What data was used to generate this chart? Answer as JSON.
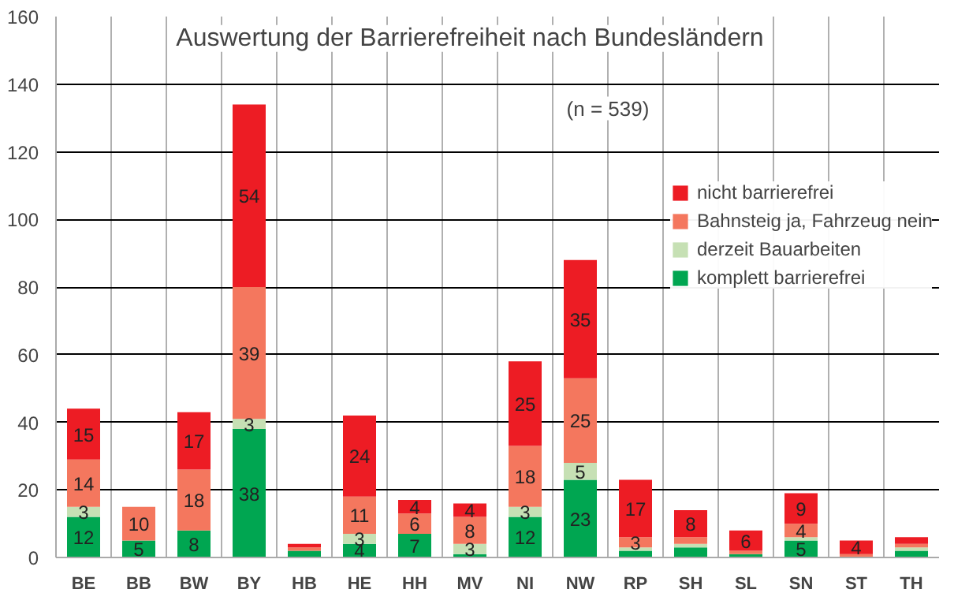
{
  "chart_data": {
    "type": "bar",
    "stacked": true,
    "title": "Auswertung der Barrierefreiheit nach Bundesländern",
    "annotations": [
      "(n = 539)"
    ],
    "categories": [
      "BE",
      "BB",
      "BW",
      "BY",
      "HB",
      "HE",
      "HH",
      "MV",
      "NI",
      "NW",
      "RP",
      "SH",
      "SL",
      "SN",
      "ST",
      "TH"
    ],
    "series": [
      {
        "name": "komplett barrierefrei",
        "color": "#00a651",
        "values": [
          12,
          5,
          8,
          38,
          2,
          4,
          7,
          1,
          12,
          23,
          2,
          3,
          1,
          5,
          0,
          2
        ],
        "value_labels": [
          "12",
          "5",
          "8",
          "38",
          null,
          "4",
          "7",
          null,
          "12",
          "23",
          null,
          null,
          null,
          "5",
          null,
          null
        ]
      },
      {
        "name": "derzeit Bauarbeiten",
        "color": "#c6e0b4",
        "values": [
          3,
          0,
          0,
          3,
          0,
          3,
          0,
          3,
          3,
          5,
          1,
          1,
          0,
          1,
          0,
          1
        ],
        "value_labels": [
          "3",
          null,
          null,
          "3",
          null,
          "3",
          null,
          "3",
          "3",
          "5",
          null,
          null,
          null,
          null,
          null,
          null
        ]
      },
      {
        "name": "Bahnsteig ja, Fahrzeug nein",
        "color": "#f4775e",
        "values": [
          14,
          10,
          18,
          39,
          1,
          11,
          6,
          8,
          18,
          25,
          3,
          2,
          1,
          4,
          1,
          1
        ],
        "value_labels": [
          "14",
          "10",
          "18",
          "39",
          null,
          "11",
          "6",
          "8",
          "18",
          "25",
          "3",
          null,
          null,
          "4",
          null,
          null
        ]
      },
      {
        "name": "nicht barrierefrei",
        "color": "#ed1c24",
        "values": [
          15,
          0,
          17,
          54,
          1,
          24,
          4,
          4,
          25,
          35,
          17,
          8,
          6,
          9,
          4,
          2
        ],
        "value_labels": [
          "15",
          null,
          "17",
          "54",
          null,
          "24",
          "4",
          "4",
          "25",
          "35",
          "17",
          "8",
          "6",
          "9",
          "4",
          null
        ]
      }
    ],
    "ylim": [
      0,
      160
    ],
    "yticks": [
      0,
      20,
      40,
      60,
      80,
      100,
      120,
      140,
      160
    ],
    "grid": true,
    "legend": "right"
  }
}
